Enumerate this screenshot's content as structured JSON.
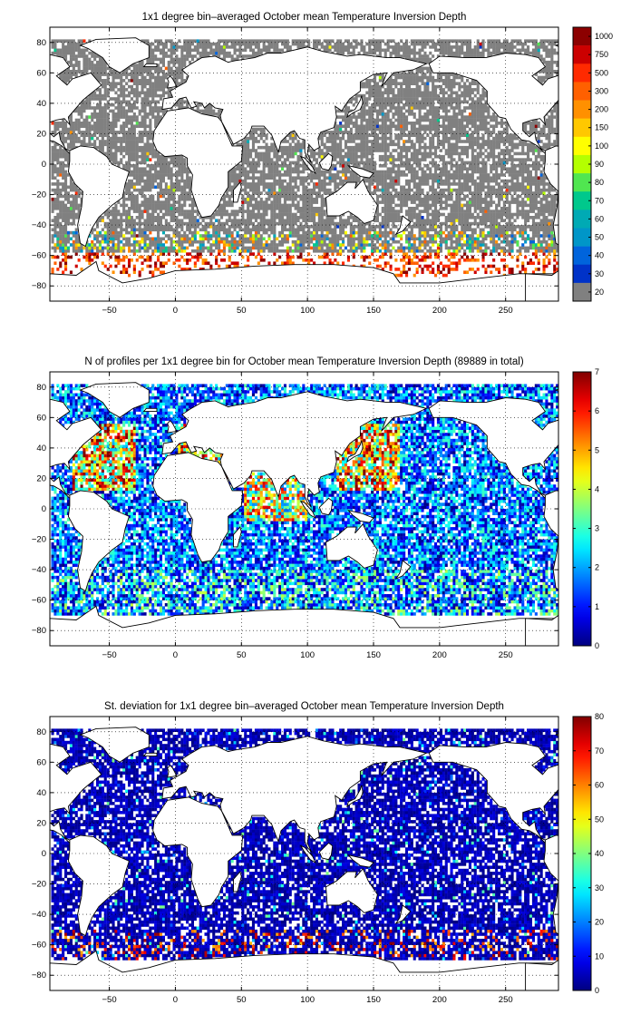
{
  "panels": [
    {
      "title": "1x1 degree bin–averaged October mean Temperature Inversion Depth",
      "colorbar_kind": "discrete",
      "colorbar_ticks": [
        "1000",
        "750",
        "500",
        "300",
        "200",
        "150",
        "100",
        "90",
        "80",
        "70",
        "60",
        "50",
        "40",
        "30",
        "20"
      ],
      "colorbar_colors": [
        "#8c0000",
        "#cc0000",
        "#ff2a00",
        "#ff6000",
        "#ff9000",
        "#ffc800",
        "#ffff00",
        "#b4ff00",
        "#50e650",
        "#00c88c",
        "#00aab4",
        "#0096c8",
        "#0064dc",
        "#0032c8",
        "#808080"
      ],
      "ocean_mode": "depth"
    },
    {
      "title": "N of profiles per 1x1 degree bin for October mean Temperature Inversion Depth  (89889 in total)",
      "colorbar_kind": "continuous",
      "colorbar_ticks": [
        "0",
        "1",
        "2",
        "3",
        "4",
        "5",
        "6",
        "7"
      ],
      "colorbar_range": [
        0,
        7
      ],
      "ocean_mode": "count"
    },
    {
      "title": "St. deviation for 1x1 degree bin–averaged October mean Temperature Inversion Depth",
      "colorbar_kind": "continuous",
      "colorbar_ticks": [
        "0",
        "10",
        "20",
        "30",
        "40",
        "50",
        "60",
        "70",
        "80"
      ],
      "colorbar_range": [
        0,
        80
      ],
      "ocean_mode": "std"
    }
  ],
  "axes": {
    "xlim": [
      -95,
      290
    ],
    "ylim": [
      -90,
      90
    ],
    "xticks": [
      -50,
      0,
      50,
      100,
      150,
      200,
      250
    ],
    "yticks": [
      -80,
      -60,
      -40,
      -20,
      0,
      20,
      40,
      60,
      80
    ],
    "xtick_labels": [
      "−50",
      "0",
      "50",
      "100",
      "150",
      "200",
      "250"
    ],
    "ytick_labels": [
      "−80",
      "−60",
      "−40",
      "−20",
      "0",
      "20",
      "40",
      "60",
      "80"
    ],
    "grid": "dotted"
  },
  "colormap": "jet"
}
